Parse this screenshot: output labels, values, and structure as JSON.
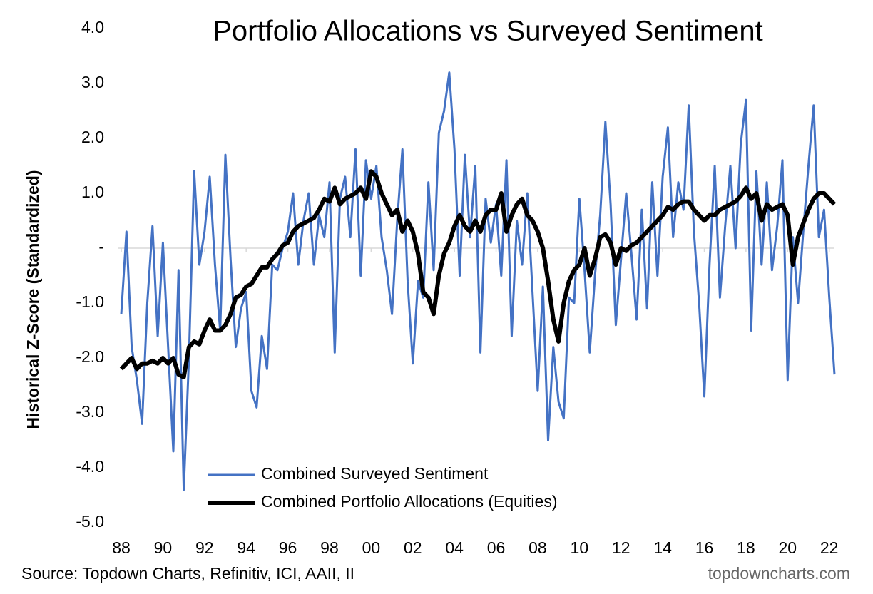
{
  "chart_data": {
    "type": "line",
    "title": "Portfolio Allocations vs Surveyed Sentiment",
    "y_label": "Historical Z-Score (Standardized)",
    "source": "Source: Topdown Charts, Refinitiv, ICI, AAII, II",
    "watermark": "topdowncharts.com",
    "legend": "bottom",
    "x": [
      1988,
      1988.25,
      1988.5,
      1988.75,
      1989,
      1989.25,
      1989.5,
      1989.75,
      1990,
      1990.25,
      1990.5,
      1990.75,
      1991,
      1991.25,
      1991.5,
      1991.75,
      1992,
      1992.25,
      1992.5,
      1992.75,
      1993,
      1993.25,
      1993.5,
      1993.75,
      1994,
      1994.25,
      1994.5,
      1994.75,
      1995,
      1995.25,
      1995.5,
      1995.75,
      1996,
      1996.25,
      1996.5,
      1996.75,
      1997,
      1997.25,
      1997.5,
      1997.75,
      1998,
      1998.25,
      1998.5,
      1998.75,
      1999,
      1999.25,
      1999.5,
      1999.75,
      2000,
      2000.25,
      2000.5,
      2000.75,
      2001,
      2001.25,
      2001.5,
      2001.75,
      2002,
      2002.25,
      2002.5,
      2002.75,
      2003,
      2003.25,
      2003.5,
      2003.75,
      2004,
      2004.25,
      2004.5,
      2004.75,
      2005,
      2005.25,
      2005.5,
      2005.75,
      2006,
      2006.25,
      2006.5,
      2006.75,
      2007,
      2007.25,
      2007.5,
      2007.75,
      2008,
      2008.25,
      2008.5,
      2008.75,
      2009,
      2009.25,
      2009.5,
      2009.75,
      2010,
      2010.25,
      2010.5,
      2010.75,
      2011,
      2011.25,
      2011.5,
      2011.75,
      2012,
      2012.25,
      2012.5,
      2012.75,
      2013,
      2013.25,
      2013.5,
      2013.75,
      2014,
      2014.25,
      2014.5,
      2014.75,
      2015,
      2015.25,
      2015.5,
      2015.75,
      2016,
      2016.25,
      2016.5,
      2016.75,
      2017,
      2017.25,
      2017.5,
      2017.75,
      2018,
      2018.25,
      2018.5,
      2018.75,
      2019,
      2019.25,
      2019.5,
      2019.75,
      2020,
      2020.25,
      2020.5,
      2020.75,
      2021,
      2021.25,
      2021.5,
      2021.75,
      2022,
      2022.25
    ],
    "series": [
      {
        "name": "Combined Surveyed Sentiment",
        "color": "#4472c4",
        "width": 3,
        "values": [
          -1.2,
          0.3,
          -1.8,
          -2.4,
          -3.2,
          -1.0,
          0.4,
          -1.6,
          0.1,
          -1.8,
          -3.7,
          -0.4,
          -4.4,
          -2.0,
          1.4,
          -0.3,
          0.3,
          1.3,
          -0.3,
          -1.5,
          1.7,
          -0.2,
          -1.8,
          -1.1,
          -0.8,
          -2.6,
          -2.9,
          -1.6,
          -2.2,
          -0.3,
          -0.4,
          0.0,
          0.3,
          1.0,
          -0.3,
          0.5,
          1.0,
          -0.3,
          0.6,
          0.2,
          1.2,
          -1.9,
          0.9,
          1.3,
          0.2,
          1.8,
          -0.5,
          1.6,
          0.9,
          1.5,
          0.2,
          -0.4,
          -1.2,
          0.5,
          1.8,
          -0.6,
          -2.1,
          -0.6,
          -0.9,
          1.2,
          -0.4,
          2.1,
          2.5,
          3.2,
          1.8,
          -0.5,
          1.7,
          0.2,
          1.5,
          -1.9,
          0.9,
          0.1,
          0.8,
          -0.5,
          1.6,
          -1.6,
          0.5,
          -0.3,
          1.0,
          -0.8,
          -2.6,
          -0.7,
          -3.5,
          -1.8,
          -2.8,
          -3.1,
          -0.9,
          -1.0,
          0.9,
          -0.4,
          -1.9,
          -0.5,
          0.6,
          2.3,
          0.8,
          -1.4,
          -0.2,
          1.0,
          -0.1,
          -1.3,
          0.7,
          -1.1,
          1.2,
          -0.5,
          1.3,
          2.2,
          0.2,
          1.2,
          0.7,
          2.6,
          0.3,
          -1.0,
          -2.7,
          -0.3,
          1.5,
          -0.9,
          0.4,
          1.5,
          0.0,
          1.9,
          2.7,
          -1.5,
          1.4,
          -0.3,
          1.2,
          -0.4,
          0.4,
          1.6,
          -2.4,
          0.2,
          -1.0,
          0.3,
          1.5,
          2.6,
          0.2,
          0.7,
          -0.9,
          -2.3
        ]
      },
      {
        "name": "Combined Portfolio Allocations (Equities)",
        "color": "#000000",
        "width": 6,
        "values": [
          -2.2,
          -2.1,
          -2.0,
          -2.2,
          -2.1,
          -2.1,
          -2.05,
          -2.1,
          -2.0,
          -2.1,
          -2.0,
          -2.3,
          -2.35,
          -1.8,
          -1.7,
          -1.75,
          -1.5,
          -1.3,
          -1.5,
          -1.5,
          -1.4,
          -1.2,
          -0.9,
          -0.85,
          -0.7,
          -0.65,
          -0.5,
          -0.35,
          -0.35,
          -0.2,
          -0.1,
          0.05,
          0.1,
          0.3,
          0.4,
          0.45,
          0.5,
          0.55,
          0.7,
          0.9,
          0.85,
          1.1,
          0.8,
          0.9,
          0.95,
          1.0,
          1.1,
          0.9,
          1.4,
          1.3,
          1.0,
          0.8,
          0.6,
          0.7,
          0.3,
          0.5,
          0.3,
          -0.1,
          -0.8,
          -0.9,
          -1.2,
          -0.5,
          -0.1,
          0.1,
          0.4,
          0.6,
          0.4,
          0.3,
          0.5,
          0.3,
          0.6,
          0.7,
          0.7,
          1.0,
          0.3,
          0.6,
          0.8,
          0.9,
          0.6,
          0.5,
          0.3,
          0.0,
          -0.6,
          -1.3,
          -1.7,
          -1.0,
          -0.6,
          -0.4,
          -0.3,
          0.0,
          -0.5,
          -0.2,
          0.2,
          0.25,
          0.1,
          -0.3,
          0.0,
          -0.05,
          0.05,
          0.1,
          0.2,
          0.3,
          0.4,
          0.5,
          0.6,
          0.75,
          0.7,
          0.8,
          0.85,
          0.85,
          0.7,
          0.6,
          0.5,
          0.6,
          0.6,
          0.7,
          0.75,
          0.8,
          0.85,
          0.95,
          1.1,
          0.9,
          1.0,
          0.5,
          0.8,
          0.7,
          0.75,
          0.8,
          0.6,
          -0.3,
          0.2,
          0.45,
          0.7,
          0.9,
          1.0,
          1.0,
          0.9,
          0.8
        ]
      }
    ],
    "xlim": [
      1988,
      2022.25
    ],
    "xticks": [
      {
        "value": 1988,
        "label": "88"
      },
      {
        "value": 1990,
        "label": "90"
      },
      {
        "value": 1992,
        "label": "92"
      },
      {
        "value": 1994,
        "label": "94"
      },
      {
        "value": 1996,
        "label": "96"
      },
      {
        "value": 1998,
        "label": "98"
      },
      {
        "value": 2000,
        "label": "00"
      },
      {
        "value": 2002,
        "label": "02"
      },
      {
        "value": 2004,
        "label": "04"
      },
      {
        "value": 2006,
        "label": "06"
      },
      {
        "value": 2008,
        "label": "08"
      },
      {
        "value": 2010,
        "label": "10"
      },
      {
        "value": 2012,
        "label": "12"
      },
      {
        "value": 2014,
        "label": "14"
      },
      {
        "value": 2016,
        "label": "16"
      },
      {
        "value": 2018,
        "label": "18"
      },
      {
        "value": 2020,
        "label": "20"
      },
      {
        "value": 2022,
        "label": "22"
      }
    ],
    "ylim": [
      -5,
      4
    ],
    "yticks": [
      {
        "value": 4,
        "label": "4.0"
      },
      {
        "value": 3,
        "label": "3.0"
      },
      {
        "value": 2,
        "label": "2.0"
      },
      {
        "value": 1,
        "label": "1.0"
      },
      {
        "value": 0,
        "label": "-"
      },
      {
        "value": -1,
        "label": "-1.0"
      },
      {
        "value": -2,
        "label": "-2.0"
      },
      {
        "value": -3,
        "label": "-3.0"
      },
      {
        "value": -4,
        "label": "-4.0"
      },
      {
        "value": -5,
        "label": "-5.0"
      }
    ]
  }
}
